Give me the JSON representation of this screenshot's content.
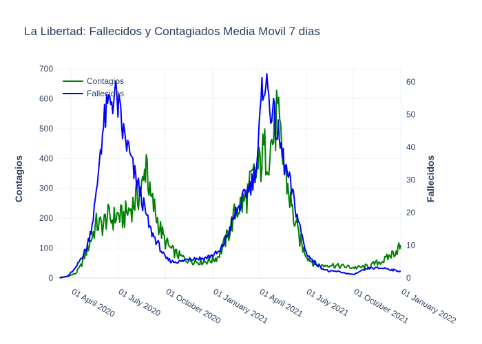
{
  "chart_data": {
    "type": "line",
    "title": "La Libertad: Fallecidos y Contagiados Media Movil 7 dias",
    "x_ticks": [
      "01 April 2020",
      "01 July 2020",
      "01 October 2020",
      "01 January 2021",
      "01 April 2021",
      "01 July 2021",
      "01 October 2021",
      "01 January 2022"
    ],
    "x_range": [
      "2020-03-01",
      "2022-01-01"
    ],
    "y_left": {
      "label": "Contagios",
      "range": [
        0,
        700
      ],
      "ticks": [
        0,
        100,
        200,
        300,
        400,
        500,
        600,
        700
      ]
    },
    "y_right": {
      "label": "Fallecidos",
      "range": [
        0,
        64
      ],
      "ticks": [
        0,
        10,
        20,
        30,
        40,
        50,
        60
      ]
    },
    "grid": true,
    "legend_position": "top-left",
    "series": [
      {
        "name": "Contagios",
        "color": "#008000",
        "axis": "left",
        "x": [
          "2020-03-10",
          "2020-03-25",
          "2020-04-10",
          "2020-04-20",
          "2020-05-01",
          "2020-05-10",
          "2020-05-20",
          "2020-06-01",
          "2020-06-10",
          "2020-06-20",
          "2020-07-01",
          "2020-07-10",
          "2020-07-20",
          "2020-08-01",
          "2020-08-10",
          "2020-08-20",
          "2020-08-25",
          "2020-09-01",
          "2020-09-10",
          "2020-09-20",
          "2020-10-01",
          "2020-10-15",
          "2020-11-01",
          "2020-11-15",
          "2020-12-01",
          "2020-12-15",
          "2021-01-01",
          "2021-01-10",
          "2021-01-20",
          "2021-02-01",
          "2021-02-10",
          "2021-02-20",
          "2021-03-01",
          "2021-03-10",
          "2021-03-20",
          "2021-04-01",
          "2021-04-10",
          "2021-04-20",
          "2021-05-01",
          "2021-05-05",
          "2021-05-15",
          "2021-05-25",
          "2021-06-05",
          "2021-06-15",
          "2021-06-25",
          "2021-07-05",
          "2021-07-15",
          "2021-08-01",
          "2021-08-15",
          "2021-09-01",
          "2021-09-15",
          "2021-10-01",
          "2021-10-15",
          "2021-11-01",
          "2021-11-15",
          "2021-12-01",
          "2021-12-15",
          "2021-12-25",
          "2022-01-01"
        ],
        "values": [
          2,
          5,
          15,
          40,
          90,
          130,
          180,
          175,
          205,
          195,
          210,
          200,
          220,
          250,
          280,
          310,
          420,
          270,
          230,
          170,
          120,
          90,
          70,
          60,
          55,
          55,
          60,
          70,
          100,
          150,
          200,
          240,
          250,
          280,
          330,
          370,
          420,
          430,
          480,
          550,
          420,
          320,
          220,
          150,
          100,
          70,
          50,
          40,
          45,
          40,
          38,
          35,
          35,
          40,
          50,
          60,
          80,
          95,
          110
        ]
      },
      {
        "name": "Fallecidos",
        "color": "#0000ff",
        "axis": "right",
        "x": [
          "2020-03-10",
          "2020-03-25",
          "2020-04-10",
          "2020-04-20",
          "2020-05-01",
          "2020-05-10",
          "2020-05-20",
          "2020-05-28",
          "2020-06-05",
          "2020-06-15",
          "2020-06-25",
          "2020-07-01",
          "2020-07-10",
          "2020-07-20",
          "2020-08-01",
          "2020-08-10",
          "2020-08-20",
          "2020-09-01",
          "2020-09-15",
          "2020-10-01",
          "2020-10-15",
          "2020-11-01",
          "2020-11-15",
          "2020-12-01",
          "2020-12-15",
          "2021-01-01",
          "2021-01-15",
          "2021-02-01",
          "2021-02-15",
          "2021-03-01",
          "2021-03-10",
          "2021-03-20",
          "2021-03-28",
          "2021-04-03",
          "2021-04-10",
          "2021-04-20",
          "2021-05-01",
          "2021-05-10",
          "2021-05-20",
          "2021-06-01",
          "2021-06-10",
          "2021-06-20",
          "2021-07-01",
          "2021-07-15",
          "2021-08-01",
          "2021-08-15",
          "2021-09-01",
          "2021-09-15",
          "2021-10-01",
          "2021-10-15",
          "2021-11-01",
          "2021-11-15",
          "2021-12-01",
          "2021-12-15",
          "2022-01-01"
        ],
        "values": [
          0,
          0.5,
          3,
          6,
          9,
          15,
          25,
          40,
          48,
          54,
          56,
          53,
          45,
          40,
          32,
          28,
          22,
          15,
          11,
          6,
          5,
          5,
          6,
          6,
          6,
          7,
          8,
          14,
          20,
          24,
          27,
          30,
          36,
          48,
          62,
          55,
          48,
          42,
          35,
          28,
          22,
          15,
          8,
          5,
          3,
          2,
          2,
          1.5,
          1,
          2,
          3,
          3,
          3,
          2.5,
          2
        ]
      }
    ]
  }
}
